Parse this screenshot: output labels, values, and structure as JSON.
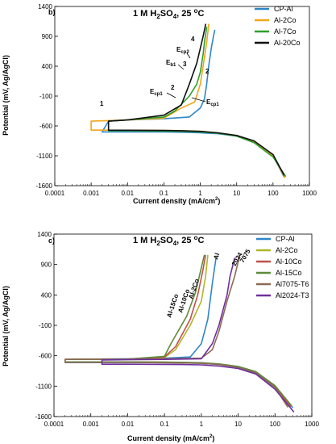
{
  "chart_data": [
    {
      "type": "line",
      "panel": "b)",
      "title": "1 M H2SO4, 25 oC",
      "xlabel": "Current density (mA/cm2)",
      "ylabel": "Potential (mV, Ag/AgCl)",
      "x_scale": "log",
      "xlim": [
        0.0001,
        1000
      ],
      "ylim": [
        -1600,
        1400
      ],
      "x_ticks": [
        "0.0001",
        "0.001",
        "0.01",
        "0.1",
        "1",
        "10",
        "100",
        "1000"
      ],
      "y_ticks": [
        "-1600",
        "-1100",
        "-600",
        "-100",
        "400",
        "900",
        "1400"
      ],
      "grid": false,
      "legend_position": "top-right",
      "annotations": [
        "1",
        "2",
        "2",
        "3",
        "4",
        "Ecp1",
        "Ecp1",
        "Eb1",
        "Ecp2"
      ],
      "series": [
        {
          "name": "CP-Al",
          "color": "#2e86c8",
          "x": [
            200,
            100,
            30,
            10,
            3,
            1,
            0.3,
            0.1,
            0.03,
            0.01,
            0.003,
            0.002,
            0.003,
            0.01,
            0.1,
            0.5,
            1,
            1.3,
            1.5,
            1.7,
            2,
            2.3,
            2.5
          ],
          "y": [
            -1450,
            -1100,
            -870,
            -770,
            -730,
            -715,
            -705,
            -702,
            -701,
            -700,
            -700,
            -700,
            -520,
            -500,
            -480,
            -450,
            -300,
            -150,
            100,
            400,
            700,
            900,
            1000
          ]
        },
        {
          "name": "Al-2Co",
          "color": "#f2a51a",
          "x": [
            210,
            100,
            30,
            10,
            3,
            1,
            0.3,
            0.1,
            0.01,
            0.001,
            0.001,
            0.01,
            0.1,
            0.3,
            0.7,
            1,
            1.2,
            1.5,
            1.7
          ],
          "y": [
            -1460,
            -1100,
            -860,
            -760,
            -715,
            -690,
            -680,
            -675,
            -672,
            -670,
            -520,
            -500,
            -470,
            -300,
            -200,
            100,
            400,
            800,
            1100
          ]
        },
        {
          "name": "Al-7Co",
          "color": "#2ca02c",
          "x": [
            220,
            100,
            30,
            10,
            3,
            1,
            0.3,
            0.1,
            0.01,
            0.003,
            0.003,
            0.01,
            0.1,
            0.2,
            0.5,
            0.8,
            1,
            1.2,
            1.3,
            1.5
          ],
          "y": [
            -1440,
            -1120,
            -880,
            -770,
            -720,
            -700,
            -690,
            -685,
            -680,
            -680,
            -520,
            -500,
            -450,
            -350,
            -100,
            100,
            300,
            600,
            800,
            1050
          ]
        },
        {
          "name": "Al-20Co",
          "color": "#111111",
          "x": [
            200,
            100,
            30,
            10,
            3,
            1,
            0.3,
            0.1,
            0.01,
            0.003,
            0.003,
            0.01,
            0.1,
            0.3,
            0.5,
            0.8,
            1,
            1.2,
            1.4
          ],
          "y": [
            -1420,
            -1080,
            -850,
            -760,
            -715,
            -690,
            -680,
            -675,
            -672,
            -670,
            -520,
            -500,
            -420,
            -250,
            100,
            450,
            700,
            900,
            1100
          ]
        }
      ]
    },
    {
      "type": "line",
      "panel": "c)",
      "title": "1 M H2SO4, 25 oC",
      "xlabel": "Current density (mA/cm2)",
      "ylabel": "Potential (mV, Ag/AgCl)",
      "x_scale": "log",
      "xlim": [
        0.0001,
        1000
      ],
      "ylim": [
        -1600,
        1400
      ],
      "x_ticks": [
        "0.0001",
        "0.001",
        "0.01",
        "0.1",
        "1",
        "10",
        "100",
        "1000"
      ],
      "y_ticks": [
        "-1600",
        "-1100",
        "-600",
        "-100",
        "400",
        "900",
        "1400"
      ],
      "grid": false,
      "legend_position": "top-right",
      "annotations": [
        "Al-15Co",
        "Al-10Co",
        "Al-2Co",
        "Al",
        "2024",
        "7075"
      ],
      "series": [
        {
          "name": "CP-Al",
          "color": "#2e86c8",
          "x": [
            300,
            100,
            30,
            10,
            3,
            1,
            0.3,
            0.1,
            0.01,
            0.0002,
            0.0002,
            0.01,
            0.1,
            0.5,
            1,
            1.5,
            2,
            2.5
          ],
          "y": [
            -1450,
            -1120,
            -880,
            -790,
            -745,
            -725,
            -718,
            -715,
            -712,
            -712,
            -660,
            -650,
            -640,
            -620,
            -400,
            0,
            600,
            1000
          ]
        },
        {
          "name": "Al-2Co",
          "color": "#b0b52a",
          "x": [
            250,
            100,
            30,
            10,
            3,
            1,
            0.3,
            0.1,
            0.01,
            0.0002,
            0.0002,
            0.01,
            0.1,
            0.2,
            0.5,
            1,
            1.3,
            1.5
          ],
          "y": [
            -1440,
            -1110,
            -870,
            -785,
            -740,
            -720,
            -712,
            -708,
            -705,
            -705,
            -660,
            -655,
            -630,
            -500,
            -100,
            300,
            700,
            1050
          ]
        },
        {
          "name": "Al-10Co",
          "color": "#c0504d",
          "x": [
            260,
            100,
            30,
            10,
            3,
            1,
            0.3,
            0.1,
            0.01,
            0.0002,
            0.0002,
            0.01,
            0.1,
            0.2,
            0.5,
            0.8,
            1.1,
            1.3
          ],
          "y": [
            -1430,
            -1100,
            -870,
            -780,
            -738,
            -718,
            -710,
            -706,
            -703,
            -703,
            -660,
            -655,
            -620,
            -450,
            0,
            400,
            800,
            1050
          ]
        },
        {
          "name": "Al-15Co",
          "color": "#5e8c3a",
          "x": [
            280,
            100,
            30,
            10,
            3,
            1,
            0.3,
            0.1,
            0.01,
            0.0002,
            0.0002,
            0.01,
            0.1,
            0.15,
            0.4,
            0.7,
            1,
            1.2
          ],
          "y": [
            -1420,
            -1090,
            -860,
            -775,
            -735,
            -715,
            -708,
            -704,
            -701,
            -701,
            -660,
            -655,
            -610,
            -400,
            50,
            450,
            850,
            1050
          ]
        },
        {
          "name": "Al7075-T6",
          "color": "#8c6a55",
          "x": [
            220,
            100,
            30,
            10,
            3,
            1,
            0.3,
            0.1,
            0.01,
            0.0002,
            0.0002,
            0.01,
            0.1,
            1,
            2,
            3,
            5,
            8,
            11
          ],
          "y": [
            -1440,
            -1120,
            -880,
            -790,
            -745,
            -725,
            -718,
            -714,
            -711,
            -711,
            -660,
            -655,
            -650,
            -640,
            -500,
            -200,
            300,
            700,
            1050
          ]
        },
        {
          "name": "Al2024-T3",
          "color": "#7030a0",
          "x": [
            320,
            100,
            30,
            10,
            3,
            1,
            0.3,
            0.1,
            0.01,
            0.002,
            0.002,
            0.01,
            0.1,
            1,
            2,
            3,
            5,
            6,
            8
          ],
          "y": [
            -1520,
            -1150,
            -900,
            -810,
            -770,
            -750,
            -745,
            -742,
            -740,
            -740,
            -670,
            -665,
            -660,
            -650,
            -400,
            -100,
            400,
            700,
            1000
          ]
        }
      ]
    }
  ]
}
